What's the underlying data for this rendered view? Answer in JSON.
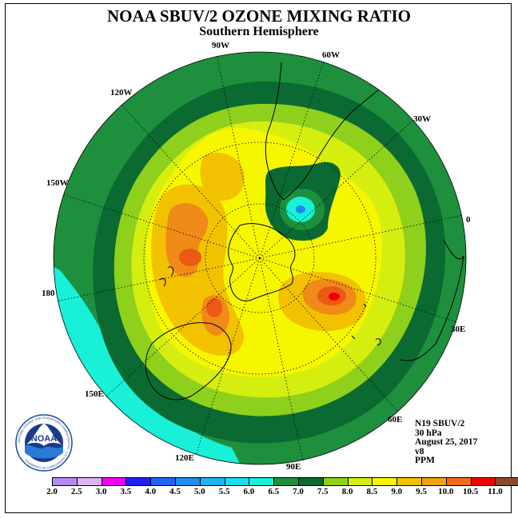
{
  "header": {
    "title": "NOAA SBUV/2 OZONE MIXING RATIO",
    "subtitle": "Southern Hemisphere"
  },
  "map": {
    "projection": "polar stereographic, south pole centered",
    "longitude_labels": [
      "90W",
      "60W",
      "30W",
      "0",
      "30E",
      "60E",
      "90E",
      "120E",
      "150E",
      "180",
      "150W",
      "120W"
    ],
    "field_colors": {
      "outer_ring": "#1e8f3c",
      "dark_ring": "#0a6a32",
      "light_green": "#8fd01c",
      "yellow_green": "#d4ee10",
      "yellow": "#f6f600",
      "gold": "#f2c200",
      "orange": "#f08a18",
      "red": "#f00000",
      "cyan": "#18f0d8",
      "blue_core": "#1a8cf0"
    },
    "max_feature": "red core near 60E",
    "min_feature": "cyan/blue core near 60W"
  },
  "info": {
    "satellite": "N19 SBUV/2",
    "level": "30 hPa",
    "date": "August 25, 2017",
    "version": "v8",
    "units": "PPM"
  },
  "logo": {
    "text": "NOAA",
    "ring_text": "NATIONAL OCEANIC AND ATMOSPHERIC ADMINISTRATION · U.S. DEPARTMENT OF COMMERCE"
  },
  "colorbar": {
    "tick_labels": [
      "2.0",
      "2.5",
      "3.0",
      "3.5",
      "4.0",
      "4.5",
      "5.0",
      "5.5",
      "6.0",
      "6.5",
      "7.0",
      "7.5",
      "8.0",
      "8.5",
      "9.0",
      "9.5",
      "10.0",
      "10.5",
      "11.0"
    ],
    "colors": [
      "#b48cf0",
      "#dcb4f0",
      "#f000f0",
      "#2020f0",
      "#1e64f0",
      "#1e8cf0",
      "#1eb4f0",
      "#18dcf0",
      "#18f0d8",
      "#1e8f3c",
      "#0a6a32",
      "#8fd01c",
      "#d4ee10",
      "#f6f600",
      "#f2c200",
      "#f0a018",
      "#f06a18",
      "#f00000",
      "#8a4a30"
    ]
  }
}
